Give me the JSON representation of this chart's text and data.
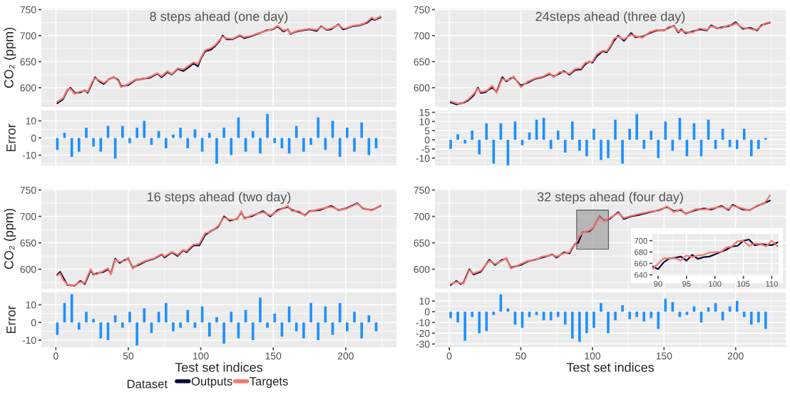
{
  "chart_data": [
    {
      "type": "line",
      "title": "8 steps ahead (one day)",
      "ylabel": "CO₂ (ppm)",
      "legend": "bottom",
      "legend_title": "Dataset",
      "grid": true,
      "tick_labels": "y",
      "x": [
        1,
        5,
        8,
        10,
        13,
        17,
        20,
        22,
        25,
        27,
        30,
        33,
        37,
        40,
        43,
        45,
        50,
        55,
        60,
        65,
        70,
        73,
        77,
        80,
        84,
        88,
        92,
        95,
        98,
        100,
        103,
        107,
        110,
        113,
        115,
        118,
        122,
        127,
        130,
        135,
        140,
        145,
        150,
        153,
        157,
        160,
        162,
        165,
        170,
        175,
        180,
        183,
        187,
        190,
        195,
        198,
        200,
        205,
        210,
        213,
        215,
        218,
        220,
        224
      ],
      "series": [
        {
          "name": "Outputs",
          "color": "#0a0a3c",
          "values": [
            570,
            578,
            595,
            600,
            590,
            591,
            595,
            590,
            608,
            620,
            612,
            607,
            617,
            620,
            615,
            603,
            605,
            615,
            617,
            619,
            627,
            620,
            630,
            625,
            636,
            632,
            640,
            647,
            641,
            655,
            670,
            673,
            680,
            690,
            700,
            693,
            693,
            700,
            695,
            699,
            704,
            710,
            712,
            718,
            708,
            712,
            703,
            707,
            710,
            712,
            709,
            718,
            711,
            712,
            722,
            712,
            713,
            718,
            720,
            723,
            725,
            732,
            730,
            735
          ]
        },
        {
          "name": "Targets",
          "color": "#f8766d",
          "values": [
            573,
            580,
            597,
            598,
            588,
            593,
            594,
            592,
            611,
            618,
            614,
            609,
            616,
            621,
            613,
            601,
            607,
            616,
            616,
            621,
            628,
            622,
            632,
            626,
            637,
            635,
            643,
            649,
            645,
            657,
            672,
            676,
            682,
            692,
            698,
            695,
            694,
            701,
            697,
            700,
            705,
            709,
            713,
            719,
            710,
            711,
            704,
            708,
            711,
            713,
            711,
            717,
            712,
            714,
            721,
            714,
            714,
            719,
            721,
            724,
            727,
            735,
            731,
            737
          ]
        }
      ],
      "xlim": [
        -10,
        235
      ],
      "xticks": [
        0,
        50,
        100,
        150,
        200
      ],
      "ylim": [
        563,
        752
      ],
      "yticks": [
        600,
        650,
        700,
        750
      ]
    },
    {
      "type": "bar",
      "ylabel": "Error",
      "grid": true,
      "tick_labels": "y",
      "color": "#1e90ff",
      "x": [
        1,
        6,
        11,
        16,
        21,
        26,
        31,
        36,
        41,
        46,
        51,
        56,
        61,
        66,
        71,
        76,
        81,
        86,
        91,
        96,
        101,
        106,
        111,
        116,
        121,
        126,
        131,
        136,
        141,
        146,
        151,
        156,
        161,
        166,
        171,
        176,
        181,
        186,
        191,
        196,
        201,
        206,
        211,
        216,
        221
      ],
      "values": [
        -7,
        3,
        -11,
        -8,
        6,
        -5,
        -8,
        7,
        -12,
        7,
        -3,
        6,
        10,
        -4,
        4,
        -6,
        2,
        6,
        -6,
        5,
        -8,
        3,
        -15,
        6,
        -10,
        12,
        -8,
        4,
        -9,
        14,
        -3,
        -6,
        -9,
        7,
        -8,
        -4,
        12,
        -7,
        10,
        -11,
        6,
        -8,
        9,
        -10,
        -6
      ],
      "xlim": [
        -10,
        235
      ],
      "xticks": [
        0,
        50,
        100,
        150,
        200
      ],
      "ylim": [
        -16,
        16
      ],
      "yticks": [
        -10,
        0,
        10
      ]
    },
    {
      "type": "line",
      "title": "24steps ahead (three day)",
      "grid": true,
      "tick_labels": "y",
      "x": [
        1,
        5,
        8,
        10,
        13,
        17,
        20,
        22,
        25,
        27,
        30,
        33,
        37,
        40,
        43,
        45,
        50,
        55,
        60,
        65,
        70,
        73,
        77,
        80,
        84,
        88,
        92,
        95,
        98,
        100,
        103,
        107,
        110,
        113,
        115,
        118,
        122,
        127,
        130,
        135,
        140,
        145,
        150,
        153,
        157,
        160,
        162,
        165,
        170,
        175,
        180,
        183,
        187,
        190,
        195,
        198,
        200,
        205,
        210,
        213,
        215,
        218,
        220,
        224
      ],
      "series": [
        {
          "name": "Outputs",
          "color": "#0a0a3c",
          "values": [
            572,
            568,
            570,
            571,
            575,
            585,
            600,
            590,
            591,
            595,
            600,
            592,
            620,
            612,
            618,
            620,
            604,
            610,
            617,
            620,
            626,
            622,
            627,
            632,
            625,
            634,
            635,
            645,
            650,
            648,
            660,
            670,
            668,
            680,
            690,
            700,
            690,
            705,
            697,
            698,
            705,
            710,
            710,
            715,
            719,
            706,
            712,
            705,
            708,
            712,
            710,
            720,
            714,
            716,
            718,
            722,
            726,
            713,
            715,
            712,
            710,
            720,
            722,
            725
          ]
        },
        {
          "name": "Targets",
          "color": "#f8766d",
          "values": [
            574,
            570,
            569,
            572,
            577,
            588,
            598,
            592,
            593,
            596,
            604,
            590,
            617,
            614,
            616,
            622,
            601,
            612,
            618,
            621,
            628,
            620,
            630,
            630,
            627,
            636,
            637,
            648,
            649,
            650,
            664,
            671,
            670,
            682,
            694,
            698,
            693,
            702,
            699,
            696,
            707,
            711,
            709,
            717,
            718,
            708,
            710,
            707,
            706,
            714,
            711,
            718,
            715,
            714,
            720,
            720,
            724,
            715,
            713,
            711,
            712,
            718,
            723,
            726
          ]
        }
      ],
      "xlim": [
        -10,
        235
      ],
      "xticks": [
        0,
        50,
        100,
        150,
        200
      ],
      "ylim": [
        563,
        752
      ],
      "yticks": [
        600,
        650,
        700,
        750
      ]
    },
    {
      "type": "bar",
      "grid": true,
      "tick_labels": "y",
      "color": "#1e90ff",
      "x": [
        1,
        6,
        11,
        16,
        21,
        26,
        31,
        36,
        41,
        46,
        51,
        56,
        61,
        66,
        71,
        76,
        81,
        86,
        91,
        96,
        101,
        106,
        111,
        116,
        121,
        126,
        131,
        136,
        141,
        146,
        151,
        156,
        161,
        166,
        171,
        176,
        181,
        186,
        191,
        196,
        201,
        206,
        211,
        216,
        221
      ],
      "values": [
        -5,
        3,
        -2,
        5,
        -8,
        9,
        -13,
        9,
        -14,
        10,
        -3,
        4,
        11,
        12,
        -5,
        5,
        -7,
        10,
        -6,
        -9,
        6,
        -11,
        -10,
        11,
        -13,
        6,
        14,
        -5,
        5,
        -10,
        10,
        -6,
        12,
        -9,
        9,
        -9,
        11,
        -5,
        6,
        -4,
        -5,
        6,
        -9,
        -5,
        1
      ],
      "xlim": [
        -10,
        235
      ],
      "xticks": [
        0,
        50,
        100,
        150,
        200
      ],
      "ylim": [
        -14,
        16
      ],
      "yticks": [
        -10,
        -5,
        0,
        5,
        10,
        15
      ]
    },
    {
      "type": "line",
      "title": "16 steps ahead (two day)",
      "ylabel": "CO₂ (ppm)",
      "grid": true,
      "tick_labels": "y",
      "x": [
        1,
        3,
        5,
        8,
        10,
        13,
        17,
        20,
        22,
        24,
        26,
        28,
        33,
        36,
        38,
        41,
        44,
        48,
        50,
        53,
        57,
        62,
        68,
        73,
        75,
        80,
        84,
        88,
        90,
        95,
        99,
        103,
        107,
        112,
        116,
        120,
        125,
        128,
        130,
        135,
        143,
        148,
        153,
        160,
        163,
        168,
        172,
        175,
        182,
        190,
        195,
        200,
        208,
        212,
        218,
        224
      ],
      "series": [
        {
          "name": "Outputs",
          "color": "#0a0a3c",
          "values": [
            590,
            595,
            585,
            570,
            570,
            569,
            578,
            572,
            585,
            598,
            590,
            592,
            595,
            600,
            592,
            620,
            612,
            618,
            620,
            603,
            608,
            615,
            620,
            628,
            622,
            632,
            625,
            636,
            632,
            645,
            645,
            665,
            672,
            680,
            700,
            692,
            695,
            708,
            697,
            700,
            710,
            700,
            712,
            718,
            712,
            708,
            702,
            710,
            712,
            720,
            712,
            715,
            725,
            715,
            712,
            720
          ]
        },
        {
          "name": "Targets",
          "color": "#f8766d",
          "values": [
            588,
            592,
            580,
            571,
            569,
            570,
            576,
            574,
            588,
            600,
            591,
            590,
            597,
            602,
            590,
            618,
            614,
            616,
            622,
            601,
            610,
            616,
            621,
            629,
            624,
            633,
            627,
            637,
            634,
            647,
            648,
            668,
            671,
            682,
            698,
            694,
            694,
            710,
            695,
            702,
            708,
            702,
            710,
            720,
            710,
            710,
            701,
            709,
            714,
            718,
            713,
            714,
            724,
            716,
            711,
            721
          ]
        }
      ],
      "xlim": [
        -10,
        235
      ],
      "xticks": [
        0,
        50,
        100,
        150,
        200
      ],
      "ylim": [
        563,
        752
      ],
      "yticks": [
        600,
        650,
        700,
        750
      ]
    },
    {
      "type": "bar",
      "ylabel": "Error",
      "xlabel": "Test set indices",
      "grid": true,
      "color": "#1e90ff",
      "x": [
        1,
        6,
        11,
        16,
        21,
        26,
        31,
        36,
        41,
        46,
        51,
        56,
        61,
        66,
        71,
        76,
        81,
        86,
        91,
        96,
        101,
        106,
        111,
        116,
        121,
        126,
        131,
        136,
        141,
        146,
        151,
        156,
        161,
        166,
        171,
        176,
        181,
        186,
        191,
        196,
        201,
        206,
        211,
        216,
        221
      ],
      "values": [
        -7,
        11,
        16,
        -4,
        6,
        2,
        -9,
        -10,
        4,
        -3,
        6,
        -13,
        8,
        -6,
        6,
        11,
        -5,
        -3,
        7,
        -3,
        9,
        -8,
        3,
        -12,
        6,
        -9,
        7,
        -10,
        14,
        -3,
        5,
        -8,
        9,
        -5,
        -9,
        11,
        -10,
        9,
        -7,
        11,
        -5,
        6,
        -9,
        4,
        -5
      ],
      "xlim": [
        -10,
        235
      ],
      "xticks": [
        0,
        50,
        100,
        150,
        200
      ],
      "ylim": [
        -14,
        17
      ],
      "yticks": [
        -10,
        0,
        10
      ]
    },
    {
      "type": "line",
      "title": "32 steps ahead (four day)",
      "grid": true,
      "tick_labels": "y",
      "x": [
        1,
        5,
        8,
        10,
        14,
        17,
        22,
        28,
        32,
        37,
        40,
        43,
        50,
        55,
        60,
        65,
        72,
        75,
        80,
        84,
        86,
        88,
        90,
        93,
        98,
        101,
        105,
        108,
        112,
        118,
        122,
        127,
        133,
        140,
        147,
        152,
        157,
        162,
        165,
        172,
        178,
        183,
        190,
        195,
        198,
        205,
        210,
        215,
        220,
        224
      ],
      "series": [
        {
          "name": "Outputs",
          "color": "#0a0a3c",
          "values": [
            570,
            578,
            572,
            575,
            600,
            590,
            595,
            618,
            608,
            618,
            620,
            603,
            608,
            615,
            618,
            622,
            628,
            622,
            632,
            630,
            640,
            648,
            650,
            670,
            672,
            680,
            700,
            692,
            695,
            708,
            695,
            700,
            703,
            708,
            712,
            718,
            710,
            712,
            705,
            712,
            715,
            713,
            720,
            712,
            722,
            713,
            712,
            720,
            725,
            730
          ]
        },
        {
          "name": "Targets",
          "color": "#f8766d",
          "values": [
            572,
            576,
            574,
            573,
            598,
            592,
            597,
            616,
            610,
            616,
            622,
            601,
            610,
            616,
            617,
            624,
            627,
            624,
            630,
            632,
            642,
            646,
            660,
            669,
            674,
            680,
            699,
            691,
            697,
            706,
            697,
            701,
            705,
            709,
            711,
            719,
            708,
            714,
            704,
            714,
            713,
            715,
            718,
            714,
            720,
            715,
            711,
            721,
            724,
            740
          ]
        }
      ],
      "xlim": [
        -10,
        235
      ],
      "xticks": [
        0,
        50,
        100,
        150,
        200
      ],
      "ylim": [
        563,
        752
      ],
      "yticks": [
        600,
        650,
        700,
        750
      ]
    },
    {
      "type": "bar",
      "xlabel": "Test set indices",
      "grid": true,
      "color": "#1e90ff",
      "x": [
        1,
        6,
        11,
        16,
        21,
        26,
        31,
        36,
        41,
        46,
        51,
        56,
        61,
        66,
        71,
        76,
        81,
        86,
        91,
        96,
        101,
        106,
        111,
        116,
        121,
        126,
        131,
        136,
        141,
        146,
        151,
        156,
        161,
        166,
        171,
        176,
        181,
        186,
        191,
        196,
        201,
        206,
        211,
        216,
        221
      ],
      "values": [
        -6,
        -10,
        -27,
        -5,
        -20,
        -18,
        -3,
        16,
        3,
        -12,
        -15,
        -5,
        -3,
        -8,
        -8,
        -5,
        -12,
        -25,
        -28,
        -20,
        -15,
        8,
        -20,
        -8,
        6,
        -7,
        -5,
        -9,
        -6,
        -16,
        12,
        9,
        -5,
        -3,
        5,
        -10,
        4,
        8,
        -8,
        5,
        10,
        -5,
        -12,
        -10,
        -16
      ],
      "xlim": [
        -10,
        235
      ],
      "xticks": [
        0,
        50,
        100,
        150,
        200
      ],
      "ylim": [
        -33,
        18
      ],
      "yticks": [
        -30,
        -20,
        -10,
        0,
        10
      ]
    },
    {
      "type": "line",
      "grid": true,
      "x": [
        89,
        90,
        91,
        92,
        93,
        94,
        95,
        96,
        97,
        98,
        99,
        100,
        101,
        102,
        103,
        104,
        105,
        106,
        107,
        108,
        109,
        110,
        111
      ],
      "series": [
        {
          "name": "Outputs",
          "color": "#0a0a3c",
          "values": [
            655,
            650,
            662,
            669,
            670,
            672,
            665,
            675,
            668,
            671,
            672,
            676,
            680,
            684,
            690,
            691,
            700,
            702,
            692,
            694,
            693,
            692,
            697
          ]
        },
        {
          "name": "Targets",
          "color": "#f8766d",
          "values": [
            650,
            660,
            669,
            669,
            669,
            665,
            674,
            671,
            674,
            675,
            679,
            680,
            680,
            688,
            690,
            699,
            700,
            691,
            695,
            694,
            690,
            700,
            690
          ]
        }
      ],
      "xlim": [
        89,
        111.2
      ],
      "xticks": [
        90,
        95,
        100,
        105,
        110
      ],
      "ylim": [
        638,
        712
      ],
      "yticks": [
        640,
        660,
        680,
        700
      ]
    }
  ]
}
